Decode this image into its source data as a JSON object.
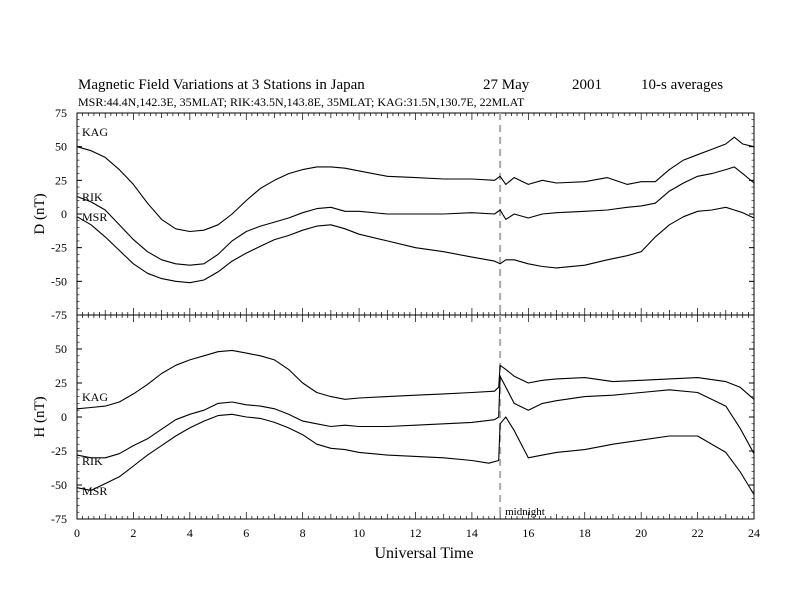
{
  "header": {
    "title": "Magnetic Field Variations at 3 Stations in Japan",
    "date": "27 May",
    "year": "2001",
    "averaging": "10-s averages",
    "stations_line": "MSR:44.4N,142.3E, 35MLAT;   RIK:43.5N,143.8E, 35MLAT;   KAG:31.5N,130.7E, 22MLAT"
  },
  "chart_data": [
    {
      "type": "line",
      "panel": "top",
      "ylabel": "D (nT)",
      "xlabel": "",
      "xlim": [
        0,
        24
      ],
      "ylim": [
        -75,
        75
      ],
      "yticks": [
        -75,
        -50,
        -25,
        0,
        25,
        50,
        75
      ],
      "grid": false,
      "marker_line": {
        "x": 15,
        "style": "dashed",
        "color": "#aaaaaa"
      },
      "series": [
        {
          "name": "KAG",
          "x": [
            0,
            0.5,
            1,
            1.5,
            2,
            2.5,
            3,
            3.5,
            4,
            4.5,
            5,
            5.5,
            6,
            6.5,
            7,
            7.5,
            8,
            8.5,
            9,
            9.5,
            10,
            11,
            12,
            13,
            14,
            14.8,
            15,
            15.2,
            15.5,
            16,
            16.5,
            17,
            18,
            18.8,
            19.5,
            20,
            20.5,
            21,
            21.5,
            22,
            22.5,
            23,
            23.3,
            23.6,
            24
          ],
          "values": [
            50,
            47,
            42,
            33,
            22,
            8,
            -4,
            -11,
            -13,
            -12,
            -8,
            0,
            10,
            19,
            25,
            30,
            33,
            35,
            35,
            34,
            32,
            28,
            27,
            26,
            26,
            25,
            28,
            22,
            27,
            22,
            25,
            23,
            24,
            27,
            22,
            24,
            24,
            33,
            40,
            44,
            48,
            52,
            57,
            52,
            50
          ]
        },
        {
          "name": "RIK",
          "x": [
            0,
            0.5,
            1,
            1.5,
            2,
            2.5,
            3,
            3.5,
            4,
            4.5,
            5,
            5.5,
            6,
            6.5,
            7,
            7.5,
            8,
            8.5,
            9,
            9.5,
            10,
            11,
            12,
            13,
            14,
            14.8,
            15,
            15.2,
            15.5,
            16,
            16.5,
            17,
            18,
            18.8,
            19.5,
            20,
            20.5,
            21,
            21.5,
            22,
            22.5,
            23,
            23.3,
            23.6,
            24
          ],
          "values": [
            13,
            9,
            3,
            -8,
            -19,
            -28,
            -34,
            -37,
            -38,
            -37,
            -30,
            -20,
            -13,
            -9,
            -6,
            -3,
            1,
            4,
            5,
            2,
            2,
            0,
            0,
            0,
            1,
            0,
            3,
            -4,
            0,
            -3,
            0,
            1,
            2,
            3,
            5,
            6,
            8,
            17,
            23,
            28,
            30,
            33,
            35,
            30,
            23
          ]
        },
        {
          "name": "MSR",
          "x": [
            0,
            0.5,
            1,
            1.5,
            2,
            2.5,
            3,
            3.5,
            4,
            4.5,
            5,
            5.5,
            6,
            6.5,
            7,
            7.5,
            8,
            8.5,
            9,
            9.5,
            10,
            11,
            12,
            13,
            14,
            14.8,
            15,
            15.2,
            15.5,
            16,
            16.5,
            17,
            18,
            18.8,
            19.5,
            20,
            20.5,
            21,
            21.5,
            22,
            22.5,
            23,
            23.3,
            23.6,
            24
          ],
          "values": [
            -2,
            -8,
            -17,
            -27,
            -37,
            -44,
            -48,
            -50,
            -51,
            -49,
            -43,
            -35,
            -29,
            -24,
            -19,
            -16,
            -12,
            -9,
            -8,
            -11,
            -15,
            -20,
            -25,
            -28,
            -32,
            -35,
            -37,
            -34,
            -34,
            -37,
            -39,
            -40,
            -38,
            -34,
            -31,
            -28,
            -17,
            -8,
            -2,
            2,
            3,
            5,
            3,
            1,
            -3
          ]
        }
      ]
    },
    {
      "type": "line",
      "panel": "bottom",
      "ylabel": "H (nT)",
      "xlabel": "Universal Time",
      "xlim": [
        0,
        24
      ],
      "ylim": [
        -75,
        75
      ],
      "yticks": [
        -75,
        -50,
        -25,
        0,
        25,
        50
      ],
      "xticks": [
        0,
        2,
        4,
        6,
        8,
        10,
        12,
        14,
        16,
        18,
        20,
        22,
        24
      ],
      "grid": false,
      "marker_line": {
        "x": 15,
        "style": "dashed",
        "color": "#aaaaaa",
        "label": "midnight"
      },
      "series": [
        {
          "name": "KAG",
          "x": [
            0,
            0.5,
            1,
            1.5,
            2,
            2.5,
            3,
            3.5,
            4,
            4.5,
            5,
            5.5,
            6,
            6.5,
            7,
            7.5,
            8,
            8.5,
            9,
            9.5,
            10,
            11,
            12,
            13,
            14,
            14.8,
            14.95,
            15,
            15.2,
            15.5,
            16,
            16.5,
            17,
            18,
            19,
            20,
            21,
            22,
            23,
            23.5,
            24
          ],
          "values": [
            6,
            7,
            8,
            11,
            17,
            24,
            32,
            38,
            42,
            45,
            48,
            49,
            47,
            45,
            42,
            35,
            25,
            18,
            15,
            13,
            14,
            15,
            16,
            17,
            18,
            19,
            22,
            38,
            35,
            30,
            25,
            27,
            28,
            29,
            26,
            27,
            28,
            29,
            26,
            22,
            13
          ]
        },
        {
          "name": "RIK",
          "x": [
            0,
            0.5,
            1,
            1.5,
            2,
            2.5,
            3,
            3.5,
            4,
            4.5,
            5,
            5.5,
            6,
            6.5,
            7,
            7.5,
            8,
            8.5,
            9,
            9.5,
            10,
            11,
            12,
            13,
            14,
            14.8,
            14.95,
            15,
            15.2,
            15.5,
            16,
            16.5,
            17,
            18,
            19,
            20,
            21,
            22,
            23,
            23.5,
            24
          ],
          "values": [
            -28,
            -30,
            -30,
            -27,
            -21,
            -16,
            -9,
            -2,
            2,
            5,
            10,
            11,
            9,
            8,
            6,
            2,
            -3,
            -5,
            -7,
            -6,
            -7,
            -7,
            -6,
            -5,
            -4,
            -2,
            0,
            30,
            22,
            10,
            5,
            10,
            12,
            15,
            16,
            18,
            20,
            18,
            8,
            -8,
            -27
          ]
        },
        {
          "name": "MSR",
          "x": [
            0,
            0.5,
            1,
            1.5,
            2,
            2.5,
            3,
            3.5,
            4,
            4.5,
            5,
            5.5,
            6,
            6.5,
            7,
            7.5,
            8,
            8.5,
            9,
            9.5,
            10,
            11,
            12,
            13,
            14,
            14.6,
            14.95,
            15,
            15.2,
            15.5,
            16,
            16.5,
            17,
            18,
            19,
            20,
            21,
            22,
            23,
            23.5,
            24
          ],
          "values": [
            -52,
            -54,
            -49,
            -44,
            -36,
            -28,
            -21,
            -14,
            -8,
            -3,
            1,
            2,
            0,
            -1,
            -4,
            -8,
            -13,
            -20,
            -23,
            -24,
            -26,
            -28,
            -29,
            -30,
            -32,
            -34,
            -32,
            -5,
            0,
            -10,
            -30,
            -28,
            -26,
            -24,
            -20,
            -17,
            -14,
            -14,
            -26,
            -40,
            -57
          ]
        }
      ]
    }
  ]
}
